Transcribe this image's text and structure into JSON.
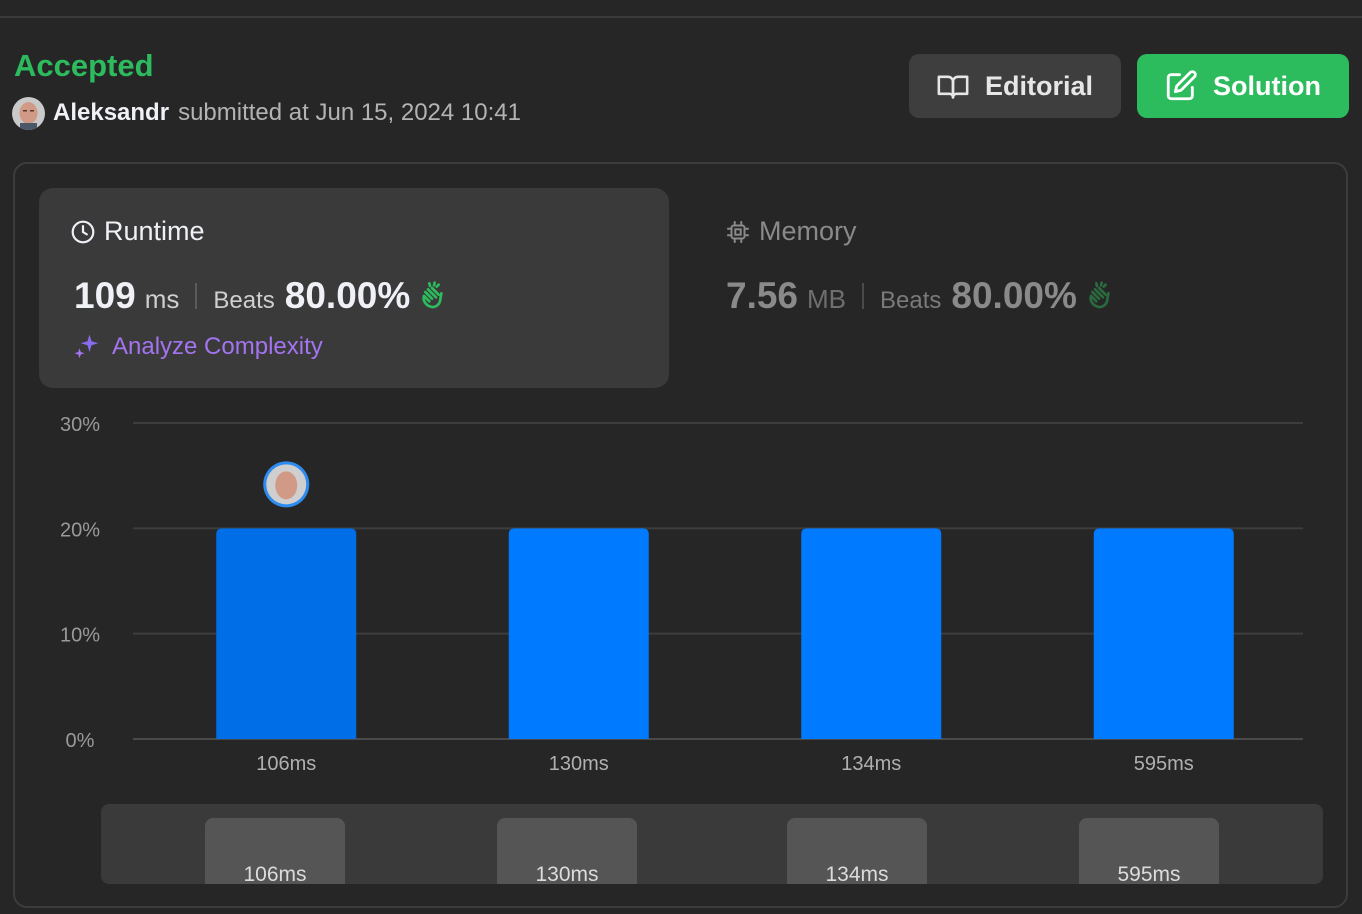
{
  "submission": {
    "status": "Accepted",
    "user": "Aleksandr",
    "submitted_text": "submitted at Jun 15, 2024 10:41"
  },
  "actions": {
    "editorial_label": "Editorial",
    "solution_label": "Solution"
  },
  "runtime": {
    "title": "Runtime",
    "value": "109",
    "unit": "ms",
    "beats_label": "Beats",
    "beats_pct": "80.00%"
  },
  "memory": {
    "title": "Memory",
    "value": "7.56",
    "unit": "MB",
    "beats_label": "Beats",
    "beats_pct": "80.00%"
  },
  "analyze": {
    "label": "Analyze Complexity"
  },
  "icons": {
    "editorial": "book-open-icon",
    "solution": "pencil-square-icon",
    "runtime": "clock-icon",
    "memory": "chip-icon",
    "beats": "clapping-hands-icon",
    "analyze": "sparkles-icon"
  },
  "colors": {
    "accepted": "#2cbb5d",
    "solution_bg": "#2cbb5d",
    "bar": "#007aff",
    "bar_highlight": "#006ee6",
    "analyze": "#a374f0",
    "avatar_ring": "#2d8cf0"
  },
  "chart_data": {
    "type": "bar",
    "categories": [
      "106ms",
      "130ms",
      "134ms",
      "595ms"
    ],
    "values": [
      20,
      20,
      20,
      20
    ],
    "highlight_index": 0,
    "y_ticks": [
      "0%",
      "10%",
      "20%",
      "30%"
    ],
    "ylim": [
      0,
      30
    ],
    "grid": true
  },
  "minimap": {
    "labels": [
      "106ms",
      "130ms",
      "134ms",
      "595ms"
    ]
  }
}
